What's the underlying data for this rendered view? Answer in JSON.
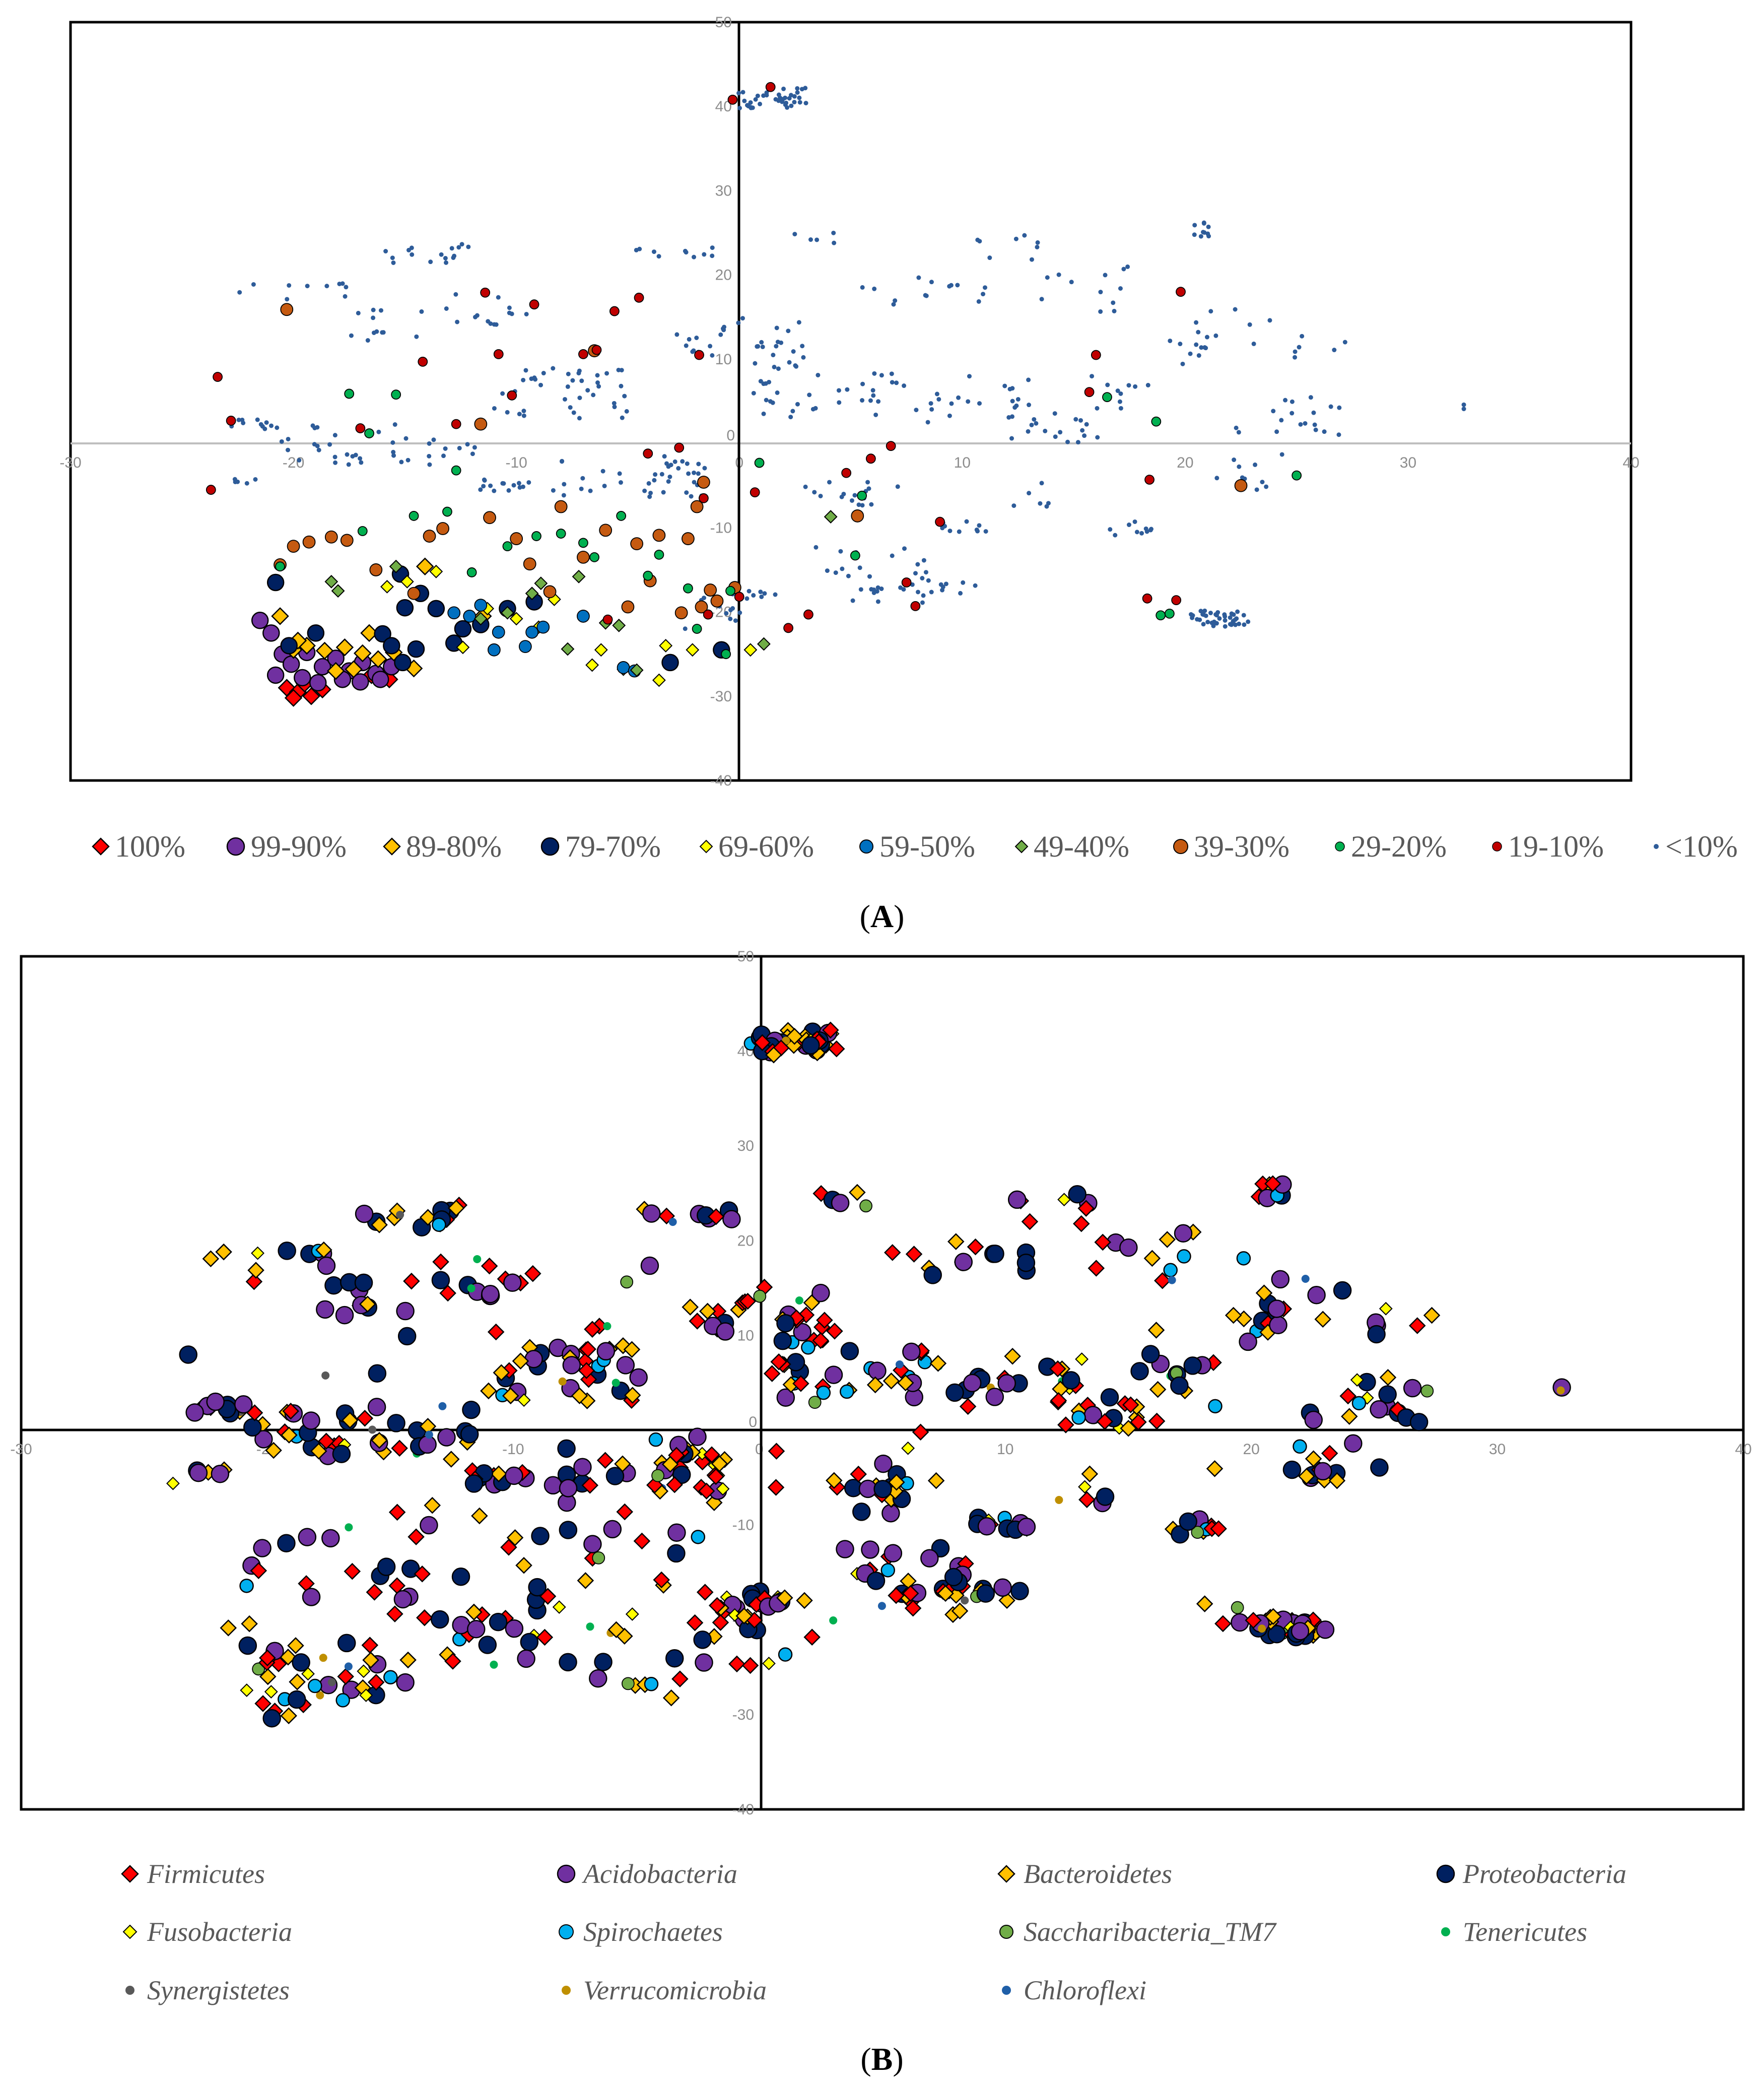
{
  "figure": {
    "caption_a": "A",
    "caption_b": "B"
  },
  "chart_data": [
    {
      "type": "scatter",
      "panel": "A",
      "title": "",
      "xlabel": "",
      "ylabel": "",
      "xlim": [
        -30,
        40
      ],
      "ylim": [
        -40,
        50
      ],
      "x_ticks": [
        -30,
        -20,
        -10,
        0,
        10,
        20,
        30,
        40
      ],
      "y_ticks": [
        50,
        40,
        30,
        20,
        10,
        0,
        -10,
        -20,
        -30,
        -40
      ],
      "legend": [
        {
          "label": "100%",
          "color": "#ff0000",
          "marker": "diamond",
          "size": "large"
        },
        {
          "label": "99-90%",
          "color": "#7030a0",
          "marker": "circle",
          "size": "large"
        },
        {
          "label": "89-80%",
          "color": "#ffc000",
          "marker": "diamond",
          "size": "large"
        },
        {
          "label": "79-70%",
          "color": "#002060",
          "marker": "circle",
          "size": "large"
        },
        {
          "label": "69-60%",
          "color": "#ffff00",
          "marker": "diamond",
          "size": "medium"
        },
        {
          "label": "59-50%",
          "color": "#0070c0",
          "marker": "circle",
          "size": "medium"
        },
        {
          "label": "49-40%",
          "color": "#70ad47",
          "marker": "diamond",
          "size": "medium"
        },
        {
          "label": "39-30%",
          "color": "#c55a11",
          "marker": "circle",
          "size": "medium"
        },
        {
          "label": "29-20%",
          "color": "#00b050",
          "marker": "circle",
          "size": "small"
        },
        {
          "label": "19-10%",
          "color": "#c00000",
          "marker": "circle",
          "size": "small"
        },
        {
          "label": "<10%",
          "color": "#2e5c99",
          "marker": "dot",
          "size": "tiny"
        }
      ],
      "series": [
        {
          "name": "100%",
          "points": [
            [
              -20.3,
              -29
            ],
            [
              -19.8,
              -29.5
            ],
            [
              -19.2,
              -30
            ],
            [
              -18.7,
              -29.2
            ],
            [
              -19.5,
              -28.5
            ],
            [
              -20.0,
              -30.2
            ],
            [
              -16.5,
              -27.5
            ],
            [
              -15.7,
              -28
            ]
          ]
        },
        {
          "name": "99-90%",
          "points": [
            [
              -21.5,
              -21
            ],
            [
              -20.5,
              -25
            ],
            [
              -20.1,
              -26.2
            ],
            [
              -19.4,
              -24.8
            ],
            [
              -18.7,
              -26.5
            ],
            [
              -18.1,
              -25.5
            ],
            [
              -17.5,
              -27
            ],
            [
              -16.9,
              -26
            ],
            [
              -16.3,
              -27.3
            ],
            [
              -15.6,
              -26.5
            ],
            [
              -20.8,
              -27.5
            ],
            [
              -19.6,
              -27.8
            ],
            [
              -18.9,
              -28.4
            ],
            [
              -17.8,
              -28
            ],
            [
              -17.0,
              -28.3
            ],
            [
              -16.1,
              -28
            ],
            [
              -21.0,
              -22.5
            ]
          ]
        },
        {
          "name": "89-80%",
          "points": [
            [
              -20.6,
              -20.5
            ],
            [
              -20.0,
              -24.5
            ],
            [
              -19.4,
              -24
            ],
            [
              -18.6,
              -24.6
            ],
            [
              -17.7,
              -24.2
            ],
            [
              -16.9,
              -24.9
            ],
            [
              -16.2,
              -25.6
            ],
            [
              -15.5,
              -24.8
            ],
            [
              -14.6,
              -26.7
            ],
            [
              -18.1,
              -27
            ],
            [
              -17.3,
              -26.8
            ],
            [
              -16.6,
              -22.5
            ],
            [
              -19.8,
              -23.4
            ],
            [
              -14.1,
              -14.6
            ],
            [
              -11.5,
              -20.5
            ]
          ]
        },
        {
          "name": "79-70%",
          "points": [
            [
              -20.8,
              -16.5
            ],
            [
              -20.2,
              -24
            ],
            [
              -19.0,
              -22.5
            ],
            [
              -16.0,
              -22.6
            ],
            [
              -15.6,
              -24
            ],
            [
              -15.1,
              -26
            ],
            [
              -14.5,
              -24.4
            ],
            [
              -15.0,
              -19.5
            ],
            [
              -15.2,
              -15.5
            ],
            [
              -13.6,
              -19.6
            ],
            [
              -14.3,
              -17.8
            ],
            [
              -12.8,
              -23.7
            ],
            [
              -12.4,
              -22
            ],
            [
              -11.6,
              -21.5
            ],
            [
              -10.4,
              -19.6
            ],
            [
              -9.2,
              -18.8
            ],
            [
              -3.1,
              -26
            ],
            [
              -0.8,
              -24.5
            ]
          ]
        },
        {
          "name": "69-60%",
          "points": [
            [
              -15.8,
              -17
            ],
            [
              -14.9,
              -16.4
            ],
            [
              -13.6,
              -15.2
            ],
            [
              -12.4,
              -24.2
            ],
            [
              -11.3,
              -19.6
            ],
            [
              -10.0,
              -20.8
            ],
            [
              -9.0,
              -21.8
            ],
            [
              -8.3,
              -18.5
            ],
            [
              -6.2,
              -24.5
            ],
            [
              -5.2,
              -26.8
            ],
            [
              -3.6,
              -28.1
            ],
            [
              -3.3,
              -24
            ],
            [
              -2.1,
              -24.5
            ],
            [
              0.5,
              -24.5
            ],
            [
              -6.6,
              -26.3
            ]
          ]
        },
        {
          "name": "59-50%",
          "points": [
            [
              -12.8,
              -20.1
            ],
            [
              -12.1,
              -20.5
            ],
            [
              -11.6,
              -19.2
            ],
            [
              -11.0,
              -24.5
            ],
            [
              -10.8,
              -22.4
            ],
            [
              -9.3,
              -22.4
            ],
            [
              -8.8,
              -21.8
            ],
            [
              -9.6,
              -24.1
            ],
            [
              -7.0,
              -20.5
            ],
            [
              -5.2,
              -26.6
            ],
            [
              -4.7,
              -27
            ]
          ]
        },
        {
          "name": "49-40%",
          "points": [
            [
              -18.3,
              -16.4
            ],
            [
              -18.0,
              -17.5
            ],
            [
              -15.4,
              -14.6
            ],
            [
              -11.6,
              -20.8
            ],
            [
              -10.4,
              -20.1
            ],
            [
              -9.3,
              -17.8
            ],
            [
              -8.9,
              -16.6
            ],
            [
              -7.2,
              -15.8
            ],
            [
              -6.0,
              -21.3
            ],
            [
              -7.7,
              -24.4
            ],
            [
              -5.4,
              -21.6
            ],
            [
              -4.6,
              -26.9
            ],
            [
              1.1,
              -23.8
            ],
            [
              4.1,
              -8.7
            ]
          ]
        },
        {
          "name": "39-30%",
          "points": [
            [
              -20.3,
              15.9
            ],
            [
              -20.6,
              -14.4
            ],
            [
              -20.0,
              -12.2
            ],
            [
              -19.3,
              -11.7
            ],
            [
              -18.3,
              -11.1
            ],
            [
              -17.6,
              -11.5
            ],
            [
              -16.3,
              -15
            ],
            [
              -14.6,
              -17.8
            ],
            [
              -13.9,
              -11
            ],
            [
              -13.3,
              -10.1
            ],
            [
              -11.6,
              2.3
            ],
            [
              -11.2,
              -8.8
            ],
            [
              -10.0,
              -11.3
            ],
            [
              -9.4,
              -14.3
            ],
            [
              -8.5,
              -17.6
            ],
            [
              -8.0,
              -7.5
            ],
            [
              -7.0,
              -13.5
            ],
            [
              -6.5,
              11
            ],
            [
              -6.0,
              -10.3
            ],
            [
              -5.0,
              -19.4
            ],
            [
              -4.6,
              -11.9
            ],
            [
              -4.0,
              -16.3
            ],
            [
              -3.6,
              -10.9
            ],
            [
              -2.3,
              -11.3
            ],
            [
              -2.6,
              -20.1
            ],
            [
              -1.7,
              -19.4
            ],
            [
              -1.3,
              -17.4
            ],
            [
              -1.0,
              -18.7
            ],
            [
              -0.2,
              -17.1
            ],
            [
              -1.6,
              -4.6
            ],
            [
              -1.9,
              -7.5
            ],
            [
              5.3,
              -8.6
            ],
            [
              22.5,
              -5
            ]
          ]
        },
        {
          "name": "29-20%",
          "points": [
            [
              -20.6,
              -14.6
            ],
            [
              -17.5,
              5.9
            ],
            [
              -16.9,
              -10.4
            ],
            [
              -16.6,
              1.2
            ],
            [
              -15.4,
              5.8
            ],
            [
              -14.6,
              -8.6
            ],
            [
              -13.1,
              -8.1
            ],
            [
              -12.7,
              -3.2
            ],
            [
              -12.0,
              -15.3
            ],
            [
              -10.4,
              -12.2
            ],
            [
              -9.1,
              -11
            ],
            [
              -8.0,
              -10.7
            ],
            [
              -7.0,
              -11.8
            ],
            [
              -6.5,
              -13.5
            ],
            [
              -5.3,
              -8.6
            ],
            [
              -4.1,
              -15.7
            ],
            [
              -3.6,
              -13.2
            ],
            [
              -2.3,
              -17.2
            ],
            [
              -0.4,
              -17.5
            ],
            [
              -1.9,
              -22
            ],
            [
              -0.6,
              -25
            ],
            [
              0.9,
              -2.3
            ],
            [
              5.2,
              -13.3
            ],
            [
              5.5,
              -6.2
            ],
            [
              16.5,
              5.5
            ],
            [
              18.7,
              2.6
            ],
            [
              18.9,
              -20.4
            ],
            [
              19.3,
              -20.2
            ],
            [
              25.0,
              -3.8
            ]
          ]
        },
        {
          "name": "19-10%",
          "points": [
            [
              -23.4,
              7.9
            ],
            [
              -23.7,
              -5.5
            ],
            [
              -22.8,
              2.7
            ],
            [
              -17.0,
              1.8
            ],
            [
              -14.2,
              9.7
            ],
            [
              -12.7,
              2.3
            ],
            [
              -11.4,
              17.9
            ],
            [
              -10.8,
              10.6
            ],
            [
              -10.2,
              5.7
            ],
            [
              -9.2,
              16.5
            ],
            [
              -7.0,
              10.6
            ],
            [
              -6.4,
              11.1
            ],
            [
              -5.6,
              15.7
            ],
            [
              -5.9,
              -20.9
            ],
            [
              -4.5,
              17.3
            ],
            [
              -4.1,
              -1.2
            ],
            [
              -2.7,
              -0.5
            ],
            [
              -1.8,
              10.5
            ],
            [
              -1.6,
              -6.5
            ],
            [
              -0.3,
              40.8
            ],
            [
              1.4,
              42.3
            ],
            [
              0.7,
              -5.8
            ],
            [
              0.0,
              -18.2
            ],
            [
              -1.4,
              -20.3
            ],
            [
              2.2,
              -21.9
            ],
            [
              3.1,
              -20.3
            ],
            [
              4.8,
              -3.5
            ],
            [
              5.9,
              -1.8
            ],
            [
              6.8,
              -0.3
            ],
            [
              7.5,
              -16.5
            ],
            [
              7.9,
              -19.3
            ],
            [
              9.0,
              -9.3
            ],
            [
              16.0,
              10.5
            ],
            [
              15.7,
              6.1
            ],
            [
              18.3,
              -18.4
            ],
            [
              18.4,
              -4.3
            ],
            [
              19.6,
              -18.6
            ],
            [
              19.8,
              18
            ]
          ]
        }
      ],
      "small_points_description": "Hundreds of small <10% points spread across the plot, including clusters near (1 to 4, 38 to 42), (19 to 24, -19 to -23), (20 to 22, 24 to 27), (32.5, 4)"
    },
    {
      "type": "scatter",
      "panel": "B",
      "title": "",
      "xlabel": "",
      "ylabel": "",
      "xlim": [
        -30,
        40
      ],
      "ylim": [
        -40,
        50
      ],
      "x_ticks": [
        -30,
        -20,
        -10,
        0,
        10,
        20,
        30,
        40
      ],
      "y_ticks": [
        50,
        40,
        30,
        20,
        10,
        0,
        -10,
        -20,
        -30,
        -40
      ],
      "legend": [
        {
          "label": "Firmicutes",
          "color": "#ff0000",
          "marker": "diamond"
        },
        {
          "label": "Acidobacteria",
          "color": "#7030a0",
          "marker": "circle"
        },
        {
          "label": "Bacteroidetes",
          "color": "#ffc000",
          "marker": "diamond"
        },
        {
          "label": "Proteobacteria",
          "color": "#002060",
          "marker": "circle"
        },
        {
          "label": "Fusobacteria",
          "color": "#ffff00",
          "marker": "diamond"
        },
        {
          "label": "Spirochaetes",
          "color": "#00b0f0",
          "marker": "circle"
        },
        {
          "label": "Saccharibacteria_TM7",
          "color": "#70ad47",
          "marker": "circle"
        },
        {
          "label": "Tenericutes",
          "color": "#00b050",
          "marker": "dot"
        },
        {
          "label": "Synergistetes",
          "color": "#595959",
          "marker": "dot"
        },
        {
          "label": "Verrucomicrobia",
          "color": "#bf8f00",
          "marker": "dot"
        },
        {
          "label": "Chloroflexi",
          "color": "#1f5fa8",
          "marker": "dot"
        }
      ],
      "series_note": "Same point cloud as panel A, colored by phylum: Firmicutes, Acidobacteria, Bacteroidetes and Proteobacteria dominate; cluster near (0 to 4, 37 to 42); cluster near (19 to 25, -19 to -24); isolated point (32.5, 4)"
    }
  ]
}
